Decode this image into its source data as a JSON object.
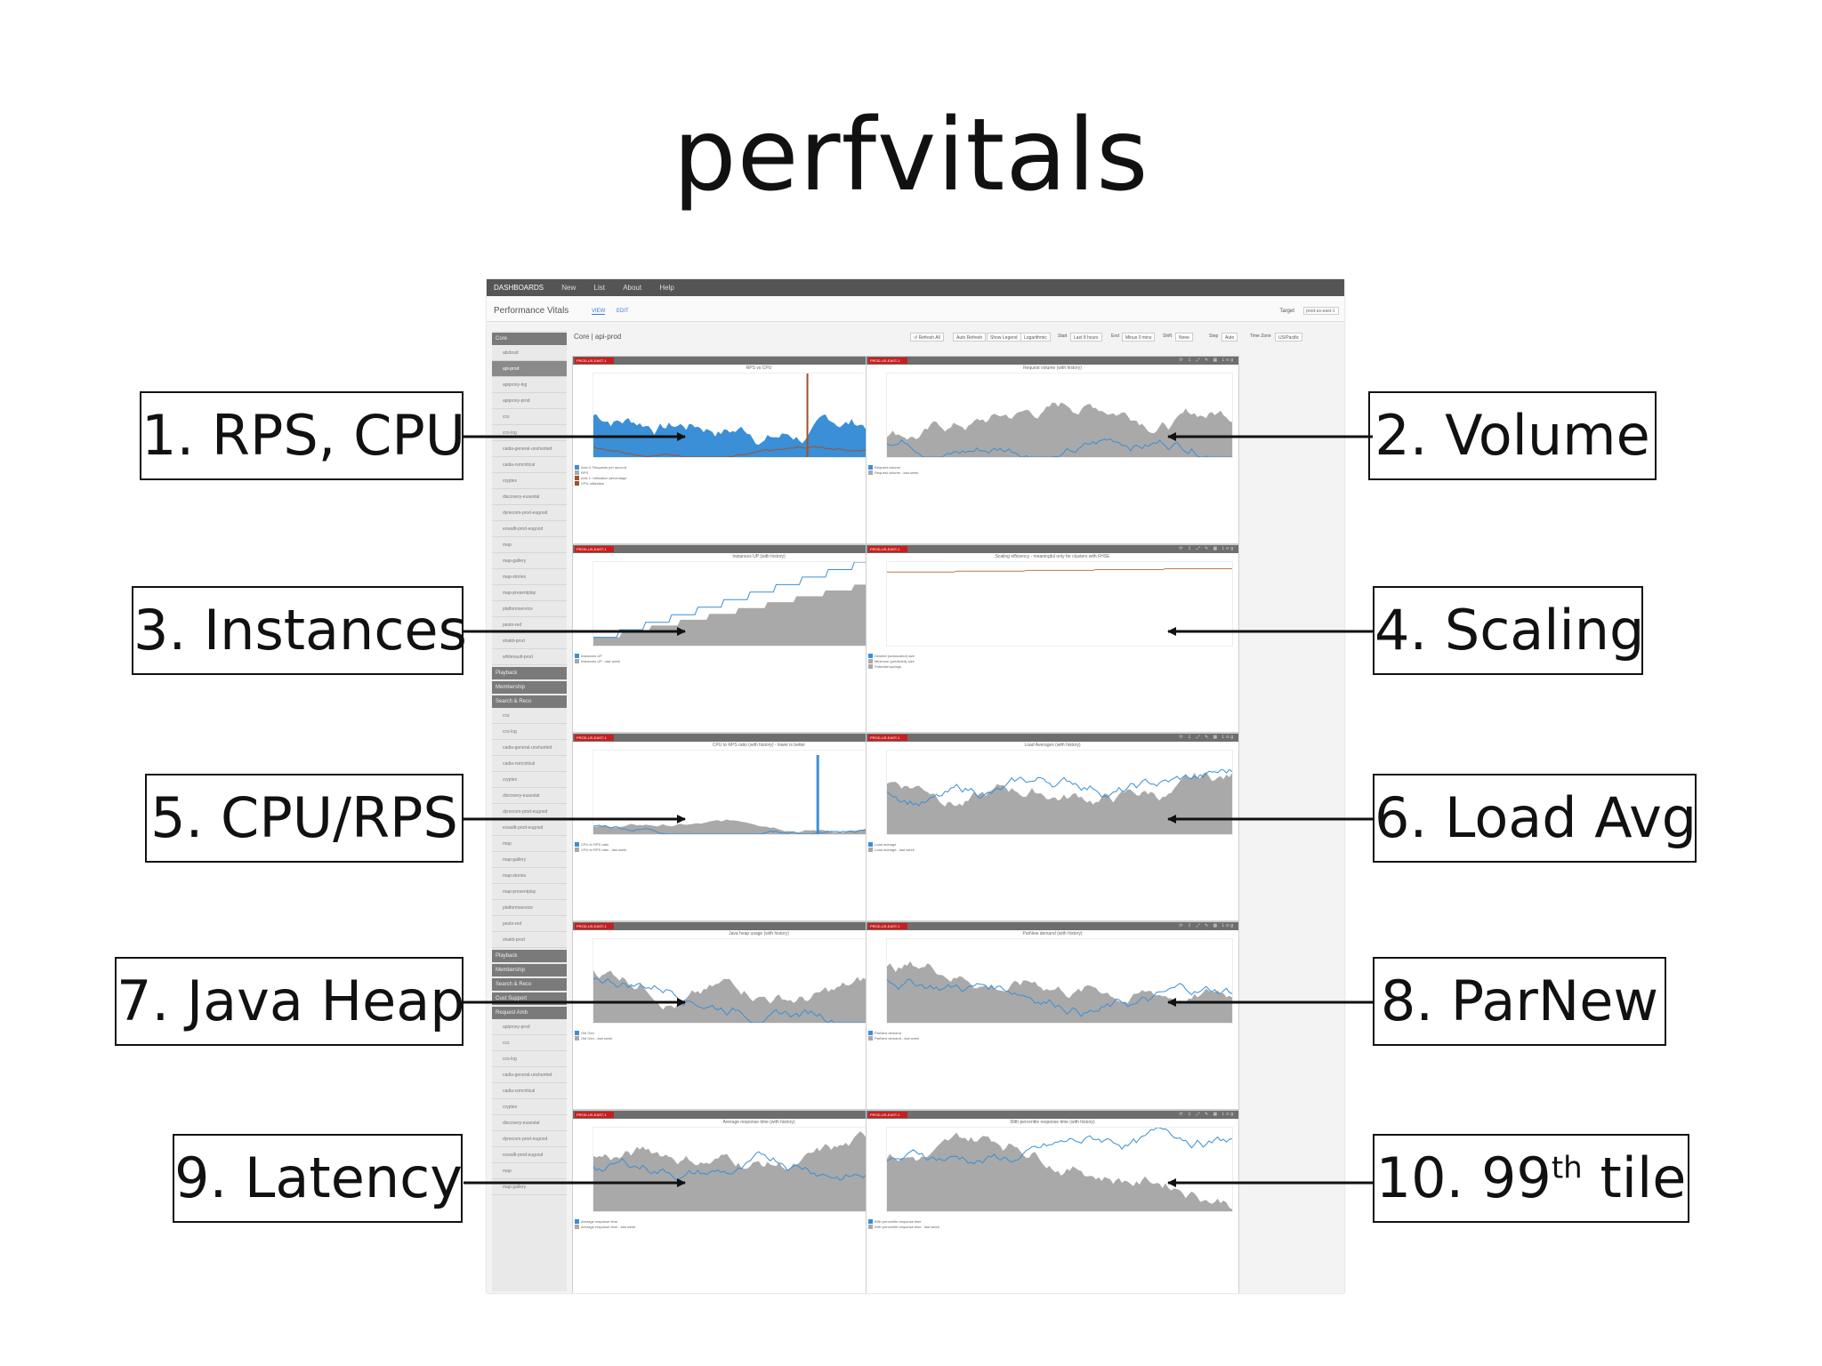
{
  "slide": {
    "title": "perfvitals"
  },
  "app": {
    "topnav": [
      "DASHBOARDS",
      "New",
      "List",
      "About",
      "Help"
    ],
    "page_title": "Performance Vitals",
    "tabs": [
      "VIEW",
      "EDIT"
    ],
    "target_label": "Target",
    "target_value": "prod-us-east-1",
    "breadcrumb": "Core | api-prod",
    "toolbar": {
      "refresh_all": "↺ Refresh All",
      "auto_refresh": "Auto Refresh",
      "show_legend": "Show Legend",
      "logarithmic": "Logarithmic",
      "start_label": "Start",
      "start_value": "Last 8 hours",
      "end_label": "End",
      "end_value": "Minus 0 mins",
      "shift_label": "Shift",
      "shift_value": "None",
      "step_label": "Step",
      "step_value": "Auto",
      "tz_label": "Time Zone",
      "tz_value": "US/Pacific"
    },
    "sidebar": {
      "sections": [
        {
          "title": "Core",
          "items": [
            "abcloud",
            "api-prod",
            "apiproxy-log",
            "apiproxy-prod",
            "ccs",
            "ccs-log",
            "cadia-general-unshunted",
            "cadia-rsmcritical",
            "cryptex",
            "discovery-eusestal",
            "dynecom-prod-eugood",
            "ecwallt-prod-eugood",
            "map",
            "map-gallery",
            "map-stories",
            "map-presentplay",
            "platformservice",
            "pesto-red",
            "shakti-prod",
            "whitevault-prod"
          ]
        },
        {
          "title": "Playback",
          "items": []
        },
        {
          "title": "Membership",
          "items": []
        },
        {
          "title": "Search & Reco",
          "items": [
            "ccs",
            "ccs-log",
            "cadia-general-unshunted",
            "cadia-rsmcritical",
            "cryptex",
            "discovery-eusestal",
            "dynecom-prod-eugood",
            "ecwallt-prod-eugood",
            "map",
            "map-gallery",
            "map-stories",
            "map-presentplay",
            "platformservice",
            "pesto-red",
            "shakti-prod"
          ]
        },
        {
          "title": "Playback",
          "items": []
        },
        {
          "title": "Membership",
          "items": []
        },
        {
          "title": "Search & Reco",
          "items": []
        },
        {
          "title": "Cust Support",
          "items": []
        },
        {
          "title": "Request Amb",
          "items": [
            "apiproxy-prod",
            "ccs",
            "ccs-log",
            "cadia-general-unshunted",
            "cadia-rsmcritical",
            "cryptex",
            "discovery-eusestal",
            "dynecom-prod-eugood",
            "ecwallt-prod-eugood",
            "map",
            "map-gallery"
          ]
        }
      ]
    },
    "panels": [
      {
        "tag": "PROD-US-EAST-1",
        "title": "RPS vs CPU",
        "legend": [
          "Axis 0: Requests per second",
          "RPS",
          "Axis 1: Utilization percentage",
          "CPU utilization"
        ]
      },
      {
        "tag": "PROD-US-EAST-1",
        "title": "Request volume (with history)",
        "legend": [
          "Request volume",
          "Request volume - last week"
        ]
      },
      {
        "tag": "PROD-US-EAST-1",
        "title": "Instances UP (with history)",
        "legend": [
          "Instances UP",
          "Instances UP - last week"
        ]
      },
      {
        "tag": "PROD-US-EAST-1",
        "title": "Scaling efficiency - meaningful only for clusters with FHSE",
        "legend": [
          "Desired (autoscaled) size",
          "Minimum (predicted) size",
          "Potential savings"
        ]
      },
      {
        "tag": "PROD-US-EAST-1",
        "title": "CPU to RPS ratio (with history) - lower is better",
        "legend": [
          "CPU to RPS ratio",
          "CPU to RPS ratio - last week"
        ]
      },
      {
        "tag": "PROD-US-EAST-1",
        "title": "Load Averages (with history)",
        "legend": [
          "Load average",
          "Load average - last week"
        ]
      },
      {
        "tag": "PROD-US-EAST-1",
        "title": "Java heap usage (with history)",
        "legend": [
          "Old Gen",
          "Old Gen - last week"
        ]
      },
      {
        "tag": "PROD-US-EAST-1",
        "title": "ParNew demand (with history)",
        "legend": [
          "ParNew demand",
          "ParNew demand - last week"
        ]
      },
      {
        "tag": "PROD-US-EAST-1",
        "title": "Average response time (with history)",
        "legend": [
          "Average response time",
          "Average response time - last week"
        ]
      },
      {
        "tag": "PROD-US-EAST-1",
        "title": "99th percentile response time (with history)",
        "legend": [
          "99th percentile response time",
          "99th percentile response time - last week"
        ]
      }
    ]
  },
  "annotations": [
    {
      "text": "1. RPS, CPU"
    },
    {
      "text": "2. Volume"
    },
    {
      "text": "3. Instances"
    },
    {
      "text": "4. Scaling"
    },
    {
      "text": "5. CPU/RPS"
    },
    {
      "text": "6. Load Avg"
    },
    {
      "text": "7. Java Heap"
    },
    {
      "text": "8. ParNew"
    },
    {
      "text": "9. Latency"
    },
    {
      "text": "10. 99",
      "sup": "th",
      "tail": " tile"
    }
  ],
  "colors": {
    "series": "#3a8fd6",
    "history": "#a9a9a9",
    "cpu": "#a0522d",
    "tag": "#c81e1e"
  }
}
